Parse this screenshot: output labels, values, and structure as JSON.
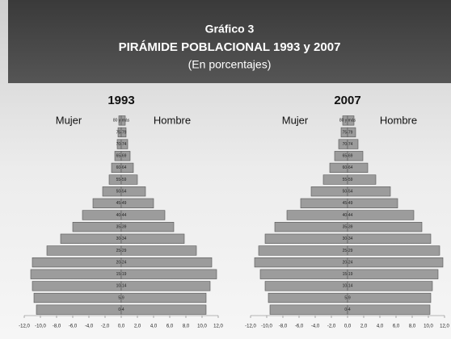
{
  "header": {
    "label": "Gráfico 3",
    "title": "PIRÁMIDE POBLACIONAL 1993 y 2007",
    "subtitle": "(En porcentajes)"
  },
  "chart_data": [
    {
      "type": "pyramid",
      "title": "1993",
      "categories": [
        "0-4",
        "5-9",
        "10-14",
        "15-19",
        "20-24",
        "25-29",
        "30-34",
        "35-39",
        "40-44",
        "45-49",
        "50-54",
        "55-59",
        "60-64",
        "65-69",
        "70-74",
        "75-79",
        "80 y más"
      ],
      "series": [
        {
          "name": "Mujer",
          "color": "#9c9c9c",
          "values": [
            -10.5,
            -10.8,
            -11.0,
            -11.2,
            -11.0,
            -9.2,
            -7.5,
            -6.0,
            -4.8,
            -3.5,
            -2.3,
            -1.5,
            -1.2,
            -0.8,
            -0.5,
            -0.4,
            -0.3
          ]
        },
        {
          "name": "Hombre",
          "color": "#9c9c9c",
          "values": [
            10.5,
            10.5,
            11.0,
            11.8,
            11.2,
            9.3,
            7.8,
            6.5,
            5.4,
            4.0,
            3.0,
            2.0,
            1.5,
            1.1,
            0.8,
            0.6,
            0.5
          ]
        }
      ],
      "xlim": [
        -12,
        12
      ],
      "xticks": [
        {
          "value": -12,
          "label": "-12,0"
        },
        {
          "value": -10,
          "label": "-10,0"
        },
        {
          "value": -8,
          "label": "-8,0"
        },
        {
          "value": -6,
          "label": "-6,0"
        },
        {
          "value": -4,
          "label": "-4,0"
        },
        {
          "value": -2,
          "label": "-2,0"
        },
        {
          "value": 0,
          "label": "0,0"
        },
        {
          "value": 2,
          "label": "2,0"
        },
        {
          "value": 4,
          "label": "4,0"
        },
        {
          "value": 6,
          "label": "6,0"
        },
        {
          "value": 8,
          "label": "8,0"
        },
        {
          "value": 10,
          "label": "10,0"
        },
        {
          "value": 12,
          "label": "12,0"
        }
      ]
    },
    {
      "type": "pyramid",
      "title": "2007",
      "categories": [
        "0-4",
        "5-9",
        "10-14",
        "15-19",
        "20-24",
        "25-29",
        "30-34",
        "35-39",
        "40-44",
        "45-49",
        "50-54",
        "55-59",
        "60-64",
        "65-69",
        "70-74",
        "75-79",
        "80 y más"
      ],
      "series": [
        {
          "name": "Mujer",
          "color": "#9c9c9c",
          "values": [
            -9.6,
            -9.8,
            -10.2,
            -10.8,
            -11.5,
            -11.0,
            -10.2,
            -9.0,
            -7.5,
            -5.8,
            -4.5,
            -3.0,
            -2.2,
            -1.6,
            -1.1,
            -0.8,
            -0.6
          ]
        },
        {
          "name": "Hombre",
          "color": "#9c9c9c",
          "values": [
            10.2,
            10.3,
            10.5,
            11.2,
            11.8,
            11.4,
            10.3,
            9.2,
            8.2,
            6.2,
            5.3,
            3.5,
            2.5,
            1.9,
            1.3,
            1.0,
            0.8
          ]
        }
      ],
      "xlim": [
        -12,
        12
      ],
      "xticks": [
        {
          "value": -12,
          "label": "-12,0"
        },
        {
          "value": -10,
          "label": "-10,0"
        },
        {
          "value": -8,
          "label": "-8,0"
        },
        {
          "value": -6,
          "label": "-6,0"
        },
        {
          "value": -4,
          "label": "-4,0"
        },
        {
          "value": -2,
          "label": "-2,0"
        },
        {
          "value": 0,
          "label": "0,0"
        },
        {
          "value": 2,
          "label": "2,0"
        },
        {
          "value": 4,
          "label": "4,0"
        },
        {
          "value": 6,
          "label": "6,0"
        },
        {
          "value": 8,
          "label": "8,0"
        },
        {
          "value": 10,
          "label": "10,0"
        },
        {
          "value": 12,
          "label": "12,0"
        }
      ]
    }
  ]
}
